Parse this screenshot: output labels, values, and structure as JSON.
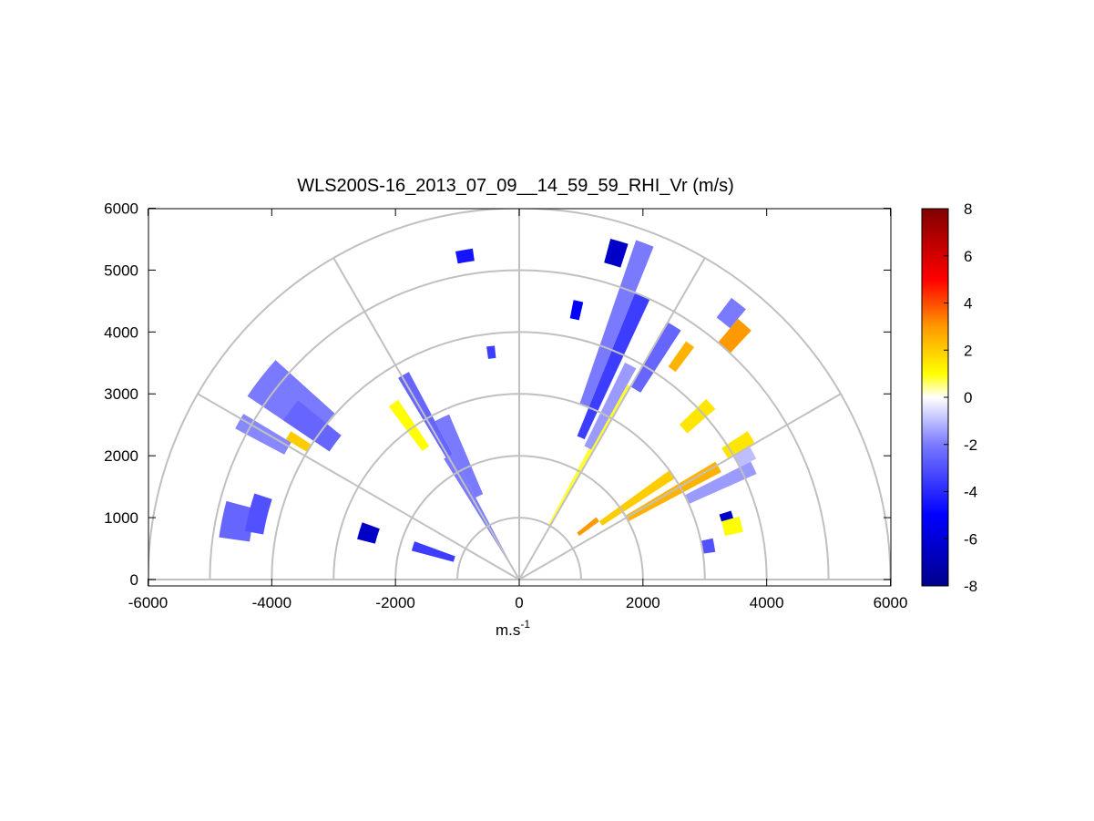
{
  "chart_data": {
    "type": "heatmap",
    "subtype": "polar-rhi-scan",
    "title": "WLS200S-16_2013_07_09__14_59_59_RHI_Vr (m/s)",
    "xlabel_base": "m.s",
    "xlabel_sup": "-1",
    "ylabel": "",
    "xlim": [
      -6000,
      6000
    ],
    "ylim": [
      0,
      6000
    ],
    "x_ticks": [
      "-6000",
      "-4000",
      "-2000",
      "0",
      "2000",
      "4000",
      "6000"
    ],
    "y_ticks": [
      "0",
      "1000",
      "2000",
      "3000",
      "4000",
      "5000",
      "6000"
    ],
    "polar_grid": {
      "range_rings": [
        1000,
        2000,
        3000,
        4000,
        5000,
        6000
      ],
      "spoke_angles_deg": [
        0,
        30,
        60,
        90,
        120,
        150,
        180
      ]
    },
    "colorbar": {
      "min": -8,
      "max": 8,
      "tick_labels": [
        "8",
        "6",
        "4",
        "2",
        "0",
        "-2",
        "-4",
        "-6",
        "-8"
      ],
      "colormap_stops": [
        {
          "v": -8,
          "color": "#00008c"
        },
        {
          "v": -5,
          "color": "#0000ff"
        },
        {
          "v": -2,
          "color": "#7a7aff"
        },
        {
          "v": 0,
          "color": "#ffffff"
        },
        {
          "v": 1,
          "color": "#ffff00"
        },
        {
          "v": 3,
          "color": "#ff9900"
        },
        {
          "v": 5,
          "color": "#ff0000"
        },
        {
          "v": 8,
          "color": "#800000"
        }
      ]
    },
    "grid": true,
    "sectors": [
      {
        "az": [
          60,
          62
        ],
        "r": [
          1000,
          3600
        ],
        "v": 0.8
      },
      {
        "az": [
          61,
          64
        ],
        "r": [
          2400,
          3900
        ],
        "v": -1.5
      },
      {
        "az": [
          65,
          68
        ],
        "r": [
          2500,
          5000
        ],
        "v": -3.5
      },
      {
        "az": [
          68,
          71
        ],
        "r": [
          3000,
          5800
        ],
        "v": -2.0
      },
      {
        "az": [
          113,
          118
        ],
        "r": [
          1500,
          2900
        ],
        "v": -2.0
      },
      {
        "az": [
          118,
          121
        ],
        "r": [
          2000,
          3800
        ],
        "v": -2.5
      },
      {
        "az": [
          124,
          127
        ],
        "r": [
          2600,
          3500
        ],
        "v": 1.0
      },
      {
        "az": [
          118,
          122
        ],
        "r": [
          300,
          2300
        ],
        "v": -2.0
      },
      {
        "az": [
          138,
          146
        ],
        "r": [
          4000,
          5300
        ],
        "v": -2.0
      },
      {
        "az": [
          141,
          146
        ],
        "r": [
          3700,
          4600
        ],
        "v": -2.5
      },
      {
        "az": [
          149,
          152
        ],
        "r": [
          4300,
          5200
        ],
        "v": -1.8
      },
      {
        "az": [
          147,
          149
        ],
        "r": [
          4000,
          4400
        ],
        "v": 2.0
      },
      {
        "az": [
          160,
          165
        ],
        "r": [
          1100,
          1800
        ],
        "v": -3.5
      },
      {
        "az": [
          160,
          166
        ],
        "r": [
          2400,
          2700
        ],
        "v": -6.5
      },
      {
        "az": [
          165,
          172
        ],
        "r": [
          4400,
          4900
        ],
        "v": -2.5
      },
      {
        "az": [
          162,
          170
        ],
        "r": [
          4200,
          4500
        ],
        "v": -3.0
      },
      {
        "az": [
          28,
          31
        ],
        "r": [
          2000,
          3700
        ],
        "v": 2.5
      },
      {
        "az": [
          33,
          36
        ],
        "r": [
          1600,
          3000
        ],
        "v": 2.0
      },
      {
        "az": [
          24,
          27
        ],
        "r": [
          3000,
          4200
        ],
        "v": -1.5
      },
      {
        "az": [
          16,
          18
        ],
        "r": [
          3400,
          3600
        ],
        "v": -6.5
      },
      {
        "az": [
          36,
          39
        ],
        "r": [
          1200,
          1600
        ],
        "v": 3.0
      },
      {
        "az": [
          41,
          44
        ],
        "r": [
          3600,
          4200
        ],
        "v": 1.5
      },
      {
        "az": [
          47,
          50
        ],
        "r": [
          5000,
          5500
        ],
        "v": 3.0
      },
      {
        "az": [
          50,
          53
        ],
        "r": [
          5300,
          5700
        ],
        "v": -2.0
      },
      {
        "az": [
          53,
          55
        ],
        "r": [
          4200,
          4700
        ],
        "v": 2.5
      },
      {
        "az": [
          57,
          60
        ],
        "r": [
          3600,
          4800
        ],
        "v": -2.5
      },
      {
        "az": [
          72,
          75
        ],
        "r": [
          5300,
          5700
        ],
        "v": -6.5
      },
      {
        "az": [
          77,
          79
        ],
        "r": [
          4300,
          4600
        ],
        "v": -5.0
      },
      {
        "az": [
          98,
          101
        ],
        "r": [
          5200,
          5400
        ],
        "v": -4.5
      },
      {
        "az": [
          96,
          98
        ],
        "r": [
          3600,
          3800
        ],
        "v": -3.5
      },
      {
        "az": [
          30,
          33
        ],
        "r": [
          3900,
          4400
        ],
        "v": 1.5
      },
      {
        "az": [
          27,
          30
        ],
        "r": [
          4000,
          4300
        ],
        "v": -1.0
      },
      {
        "az": [
          8,
          12
        ],
        "r": [
          3000,
          3200
        ],
        "v": -3.0
      },
      {
        "az": [
          12,
          16
        ],
        "r": [
          3400,
          3700
        ],
        "v": 1.0
      }
    ]
  }
}
